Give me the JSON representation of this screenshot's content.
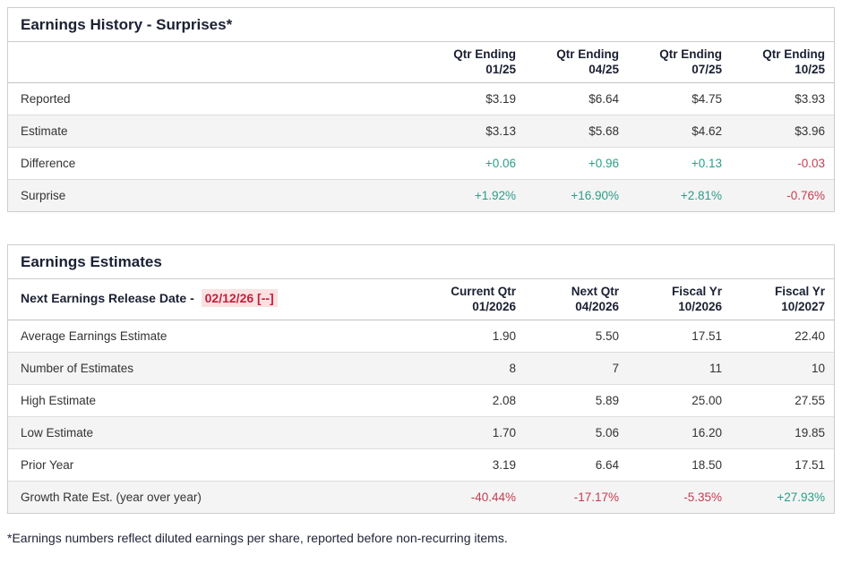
{
  "colors": {
    "positive": "#2d9c88",
    "negative": "#c43d50",
    "highlight_bg": "#fbe1e2",
    "highlight_text": "#c5203c"
  },
  "earnings_history": {
    "title": "Earnings History - Surprises*",
    "columns": [
      {
        "line1": "Qtr Ending",
        "line2": "01/25"
      },
      {
        "line1": "Qtr Ending",
        "line2": "04/25"
      },
      {
        "line1": "Qtr Ending",
        "line2": "07/25"
      },
      {
        "line1": "Qtr Ending",
        "line2": "10/25"
      }
    ],
    "rows": [
      {
        "label": "Reported",
        "values": [
          {
            "text": "$3.19",
            "tone": "neutral"
          },
          {
            "text": "$6.64",
            "tone": "neutral"
          },
          {
            "text": "$4.75",
            "tone": "neutral"
          },
          {
            "text": "$3.93",
            "tone": "neutral"
          }
        ]
      },
      {
        "label": "Estimate",
        "values": [
          {
            "text": "$3.13",
            "tone": "neutral"
          },
          {
            "text": "$5.68",
            "tone": "neutral"
          },
          {
            "text": "$4.62",
            "tone": "neutral"
          },
          {
            "text": "$3.96",
            "tone": "neutral"
          }
        ]
      },
      {
        "label": "Difference",
        "values": [
          {
            "text": "+0.06",
            "tone": "pos"
          },
          {
            "text": "+0.96",
            "tone": "pos"
          },
          {
            "text": "+0.13",
            "tone": "pos"
          },
          {
            "text": "-0.03",
            "tone": "neg"
          }
        ]
      },
      {
        "label": "Surprise",
        "values": [
          {
            "text": "+1.92%",
            "tone": "pos"
          },
          {
            "text": "+16.90%",
            "tone": "pos"
          },
          {
            "text": "+2.81%",
            "tone": "pos"
          },
          {
            "text": "-0.76%",
            "tone": "neg"
          }
        ]
      }
    ]
  },
  "earnings_estimates": {
    "title": "Earnings Estimates",
    "release_label": "Next Earnings Release Date -",
    "release_date": "02/12/26 [--]",
    "columns": [
      {
        "line1": "Current Qtr",
        "line2": "01/2026"
      },
      {
        "line1": "Next Qtr",
        "line2": "04/2026"
      },
      {
        "line1": "Fiscal Yr",
        "line2": "10/2026"
      },
      {
        "line1": "Fiscal Yr",
        "line2": "10/2027"
      }
    ],
    "rows": [
      {
        "label": "Average Earnings Estimate",
        "values": [
          {
            "text": "1.90",
            "tone": "neutral"
          },
          {
            "text": "5.50",
            "tone": "neutral"
          },
          {
            "text": "17.51",
            "tone": "neutral"
          },
          {
            "text": "22.40",
            "tone": "neutral"
          }
        ]
      },
      {
        "label": "Number of Estimates",
        "values": [
          {
            "text": "8",
            "tone": "neutral"
          },
          {
            "text": "7",
            "tone": "neutral"
          },
          {
            "text": "11",
            "tone": "neutral"
          },
          {
            "text": "10",
            "tone": "neutral"
          }
        ]
      },
      {
        "label": "High Estimate",
        "values": [
          {
            "text": "2.08",
            "tone": "neutral"
          },
          {
            "text": "5.89",
            "tone": "neutral"
          },
          {
            "text": "25.00",
            "tone": "neutral"
          },
          {
            "text": "27.55",
            "tone": "neutral"
          }
        ]
      },
      {
        "label": "Low Estimate",
        "values": [
          {
            "text": "1.70",
            "tone": "neutral"
          },
          {
            "text": "5.06",
            "tone": "neutral"
          },
          {
            "text": "16.20",
            "tone": "neutral"
          },
          {
            "text": "19.85",
            "tone": "neutral"
          }
        ]
      },
      {
        "label": "Prior Year",
        "values": [
          {
            "text": "3.19",
            "tone": "neutral"
          },
          {
            "text": "6.64",
            "tone": "neutral"
          },
          {
            "text": "18.50",
            "tone": "neutral"
          },
          {
            "text": "17.51",
            "tone": "neutral"
          }
        ]
      },
      {
        "label": "Growth Rate Est. (year over year)",
        "values": [
          {
            "text": "-40.44%",
            "tone": "neg"
          },
          {
            "text": "-17.17%",
            "tone": "neg"
          },
          {
            "text": "-5.35%",
            "tone": "neg"
          },
          {
            "text": "+27.93%",
            "tone": "pos"
          }
        ]
      }
    ]
  },
  "footnote": "*Earnings numbers reflect diluted earnings per share, reported before non-recurring items."
}
